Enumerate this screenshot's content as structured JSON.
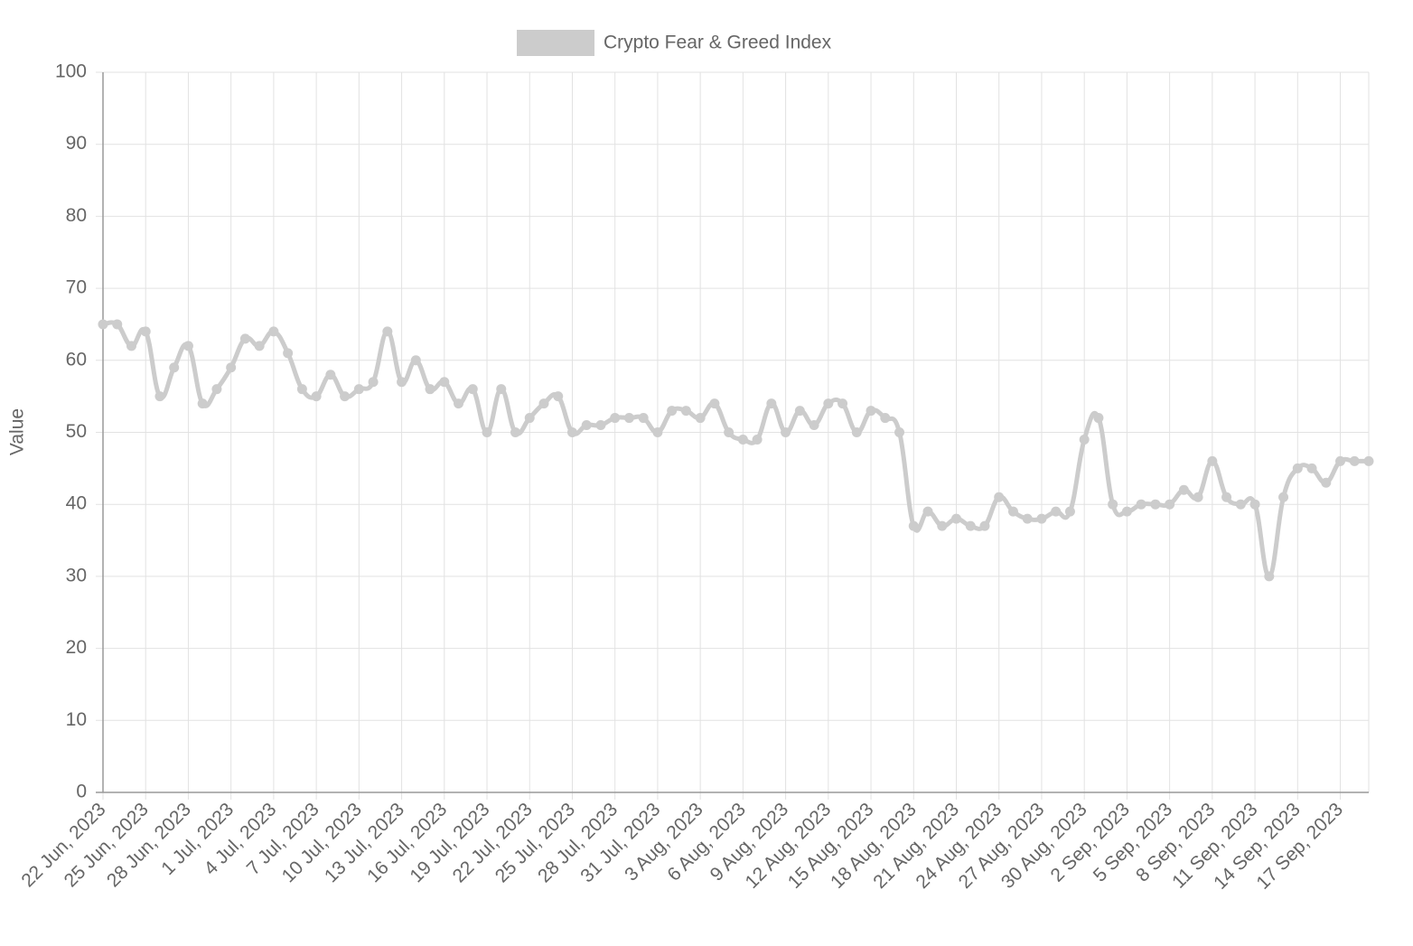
{
  "chart_data": {
    "type": "line",
    "y_label": "Value",
    "categories": [
      "22 Jun, 2023",
      null,
      null,
      "25 Jun, 2023",
      null,
      null,
      "28 Jun, 2023",
      null,
      null,
      "1 Jul, 2023",
      null,
      null,
      "4 Jul, 2023",
      null,
      null,
      "7 Jul, 2023",
      null,
      null,
      "10 Jul, 2023",
      null,
      null,
      "13 Jul, 2023",
      null,
      null,
      "16 Jul, 2023",
      null,
      null,
      "19 Jul, 2023",
      null,
      null,
      "22 Jul, 2023",
      null,
      null,
      "25 Jul, 2023",
      null,
      null,
      "28 Jul, 2023",
      null,
      null,
      "31 Jul, 2023",
      null,
      null,
      "3 Aug, 2023",
      null,
      null,
      "6 Aug, 2023",
      null,
      null,
      "9 Aug, 2023",
      null,
      null,
      "12 Aug, 2023",
      null,
      null,
      "15 Aug, 2023",
      null,
      null,
      "18 Aug, 2023",
      null,
      null,
      "21 Aug, 2023",
      null,
      null,
      "24 Aug, 2023",
      null,
      null,
      "27 Aug, 2023",
      null,
      null,
      "30 Aug, 2023",
      null,
      null,
      "2 Sep, 2023",
      null,
      null,
      "5 Sep, 2023",
      null,
      null,
      "8 Sep, 2023",
      null,
      null,
      "11 Sep, 2023",
      null,
      null,
      "14 Sep, 2023",
      null,
      null,
      "17 Sep, 2023",
      null,
      null
    ],
    "series": [
      {
        "name": "Crypto Fear & Greed Index",
        "color": "#cccccc",
        "values": [
          65,
          65,
          62,
          64,
          55,
          59,
          62,
          54,
          56,
          59,
          63,
          62,
          64,
          61,
          56,
          55,
          58,
          55,
          56,
          57,
          64,
          57,
          60,
          56,
          57,
          54,
          56,
          50,
          56,
          50,
          52,
          54,
          55,
          50,
          51,
          51,
          52,
          52,
          52,
          50,
          53,
          53,
          52,
          54,
          50,
          49,
          49,
          54,
          50,
          53,
          51,
          54,
          54,
          50,
          53,
          52,
          50,
          37,
          39,
          37,
          38,
          37,
          37,
          41,
          39,
          38,
          38,
          39,
          39,
          49,
          52,
          40,
          39,
          40,
          40,
          40,
          42,
          41,
          46,
          41,
          40,
          40,
          30,
          41,
          45,
          45,
          43,
          46,
          46,
          46
        ]
      }
    ],
    "ylim": [
      0,
      100
    ],
    "yticks": [
      0,
      10,
      20,
      30,
      40,
      50,
      60,
      70,
      80,
      90,
      100
    ],
    "grid": true
  }
}
